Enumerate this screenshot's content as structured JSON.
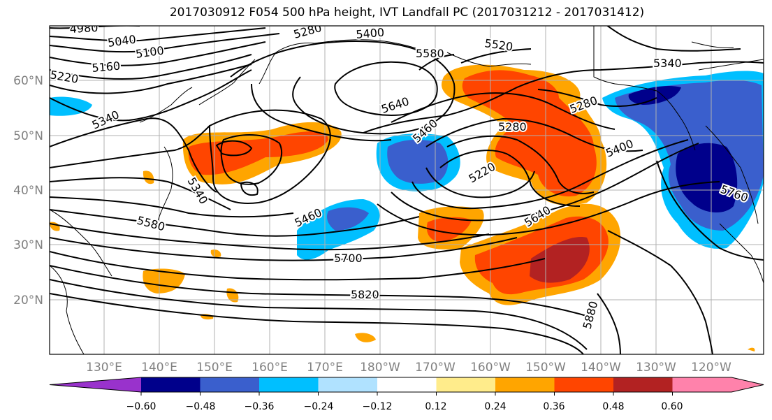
{
  "title": "2017030912 F054 500 hPa height, IVT Landfall PC (2017031212 - 2017031412)",
  "map": {
    "lat_labels": [
      "60°N",
      "50°N",
      "40°N",
      "30°N",
      "20°N"
    ],
    "lon_labels": [
      "130°E",
      "140°E",
      "150°E",
      "160°E",
      "170°E",
      "180°W",
      "170°W",
      "160°W",
      "150°W",
      "140°W",
      "130°W",
      "120°W"
    ],
    "contour_labels": [
      {
        "text": "4980"
      },
      {
        "text": "5040"
      },
      {
        "text": "5100"
      },
      {
        "text": "5160"
      },
      {
        "text": "5220"
      },
      {
        "text": "5280"
      },
      {
        "text": "5400"
      },
      {
        "text": "5580"
      },
      {
        "text": "5520"
      },
      {
        "text": "5340"
      },
      {
        "text": "5340"
      },
      {
        "text": "5640"
      },
      {
        "text": "5460"
      },
      {
        "text": "5280"
      },
      {
        "text": "5280"
      },
      {
        "text": "5220"
      },
      {
        "text": "5400"
      },
      {
        "text": "5340"
      },
      {
        "text": "5580"
      },
      {
        "text": "5460"
      },
      {
        "text": "5640"
      },
      {
        "text": "5700"
      },
      {
        "text": "5820"
      },
      {
        "text": "5880"
      },
      {
        "text": "5760"
      }
    ]
  },
  "colorbar": {
    "colors": [
      "#9932cc",
      "#00008b",
      "#3a5fcd",
      "#00bfff",
      "#b0e2ff",
      "#ffffff",
      "#ffec8b",
      "#ffa500",
      "#ff4500",
      "#b22222",
      "#ff82ab"
    ],
    "tick_labels": [
      "−0.60",
      "−0.48",
      "−0.36",
      "−0.24",
      "−0.12",
      "0.12",
      "0.24",
      "0.36",
      "0.48",
      "0.60"
    ]
  }
}
